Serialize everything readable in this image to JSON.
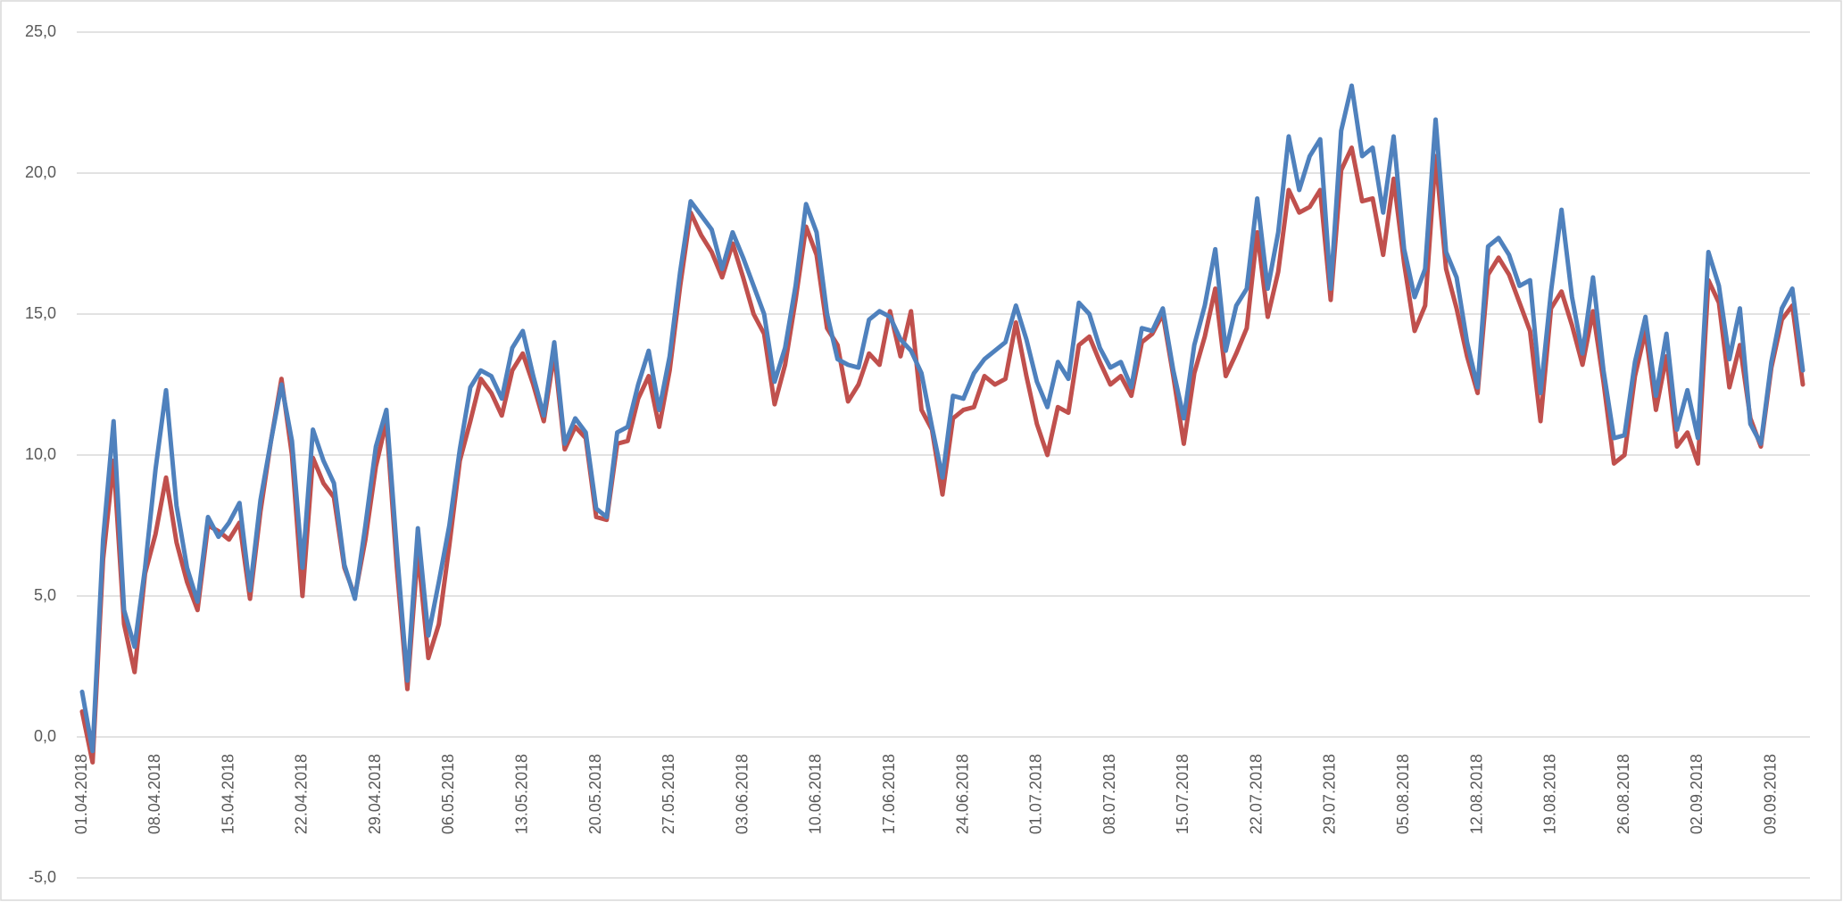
{
  "chart_data": {
    "type": "line",
    "categories": [
      "01.04.2018",
      null,
      null,
      null,
      null,
      null,
      null,
      "08.04.2018",
      null,
      null,
      null,
      null,
      null,
      null,
      "15.04.2018",
      null,
      null,
      null,
      null,
      null,
      null,
      "22.04.2018",
      null,
      null,
      null,
      null,
      null,
      null,
      "29.04.2018",
      null,
      null,
      null,
      null,
      null,
      null,
      "06.05.2018",
      null,
      null,
      null,
      null,
      null,
      null,
      "13.05.2018",
      null,
      null,
      null,
      null,
      null,
      null,
      "20.05.2018",
      null,
      null,
      null,
      null,
      null,
      null,
      "27.05.2018",
      null,
      null,
      null,
      null,
      null,
      null,
      "03.06.2018",
      null,
      null,
      null,
      null,
      null,
      null,
      "10.06.2018",
      null,
      null,
      null,
      null,
      null,
      null,
      "17.06.2018",
      null,
      null,
      null,
      null,
      null,
      null,
      "24.06.2018",
      null,
      null,
      null,
      null,
      null,
      null,
      "01.07.2018",
      null,
      null,
      null,
      null,
      null,
      null,
      "08.07.2018",
      null,
      null,
      null,
      null,
      null,
      null,
      "15.07.2018",
      null,
      null,
      null,
      null,
      null,
      null,
      "22.07.2018",
      null,
      null,
      null,
      null,
      null,
      null,
      "29.07.2018",
      null,
      null,
      null,
      null,
      null,
      null,
      "05.08.2018",
      null,
      null,
      null,
      null,
      null,
      null,
      "12.08.2018",
      null,
      null,
      null,
      null,
      null,
      null,
      "19.08.2018",
      null,
      null,
      null,
      null,
      null,
      null,
      "26.08.2018",
      null,
      null,
      null,
      null,
      null,
      null,
      "02.09.2018",
      null,
      null,
      null,
      null,
      null,
      null,
      "09.09.2018",
      null,
      null,
      null
    ],
    "series": [
      {
        "color": "#c0504d",
        "values": [
          0.9,
          -0.9,
          6.3,
          9.8,
          4.0,
          2.3,
          5.8,
          7.2,
          9.2,
          6.9,
          5.5,
          4.5,
          7.5,
          7.3,
          7.0,
          7.6,
          4.9,
          8.0,
          10.5,
          12.7,
          10.0,
          5.0,
          9.9,
          9.0,
          8.5,
          6.0,
          5.0,
          7.0,
          9.6,
          11.2,
          6.0,
          1.7,
          6.6,
          2.8,
          4.0,
          6.8,
          9.8,
          11.2,
          12.7,
          12.2,
          11.4,
          13.0,
          13.6,
          12.5,
          11.2,
          13.6,
          10.2,
          11.0,
          10.6,
          7.8,
          7.7,
          10.4,
          10.5,
          12.0,
          12.8,
          11.0,
          13.0,
          16.0,
          18.6,
          17.8,
          17.2,
          16.3,
          17.5,
          16.3,
          15.0,
          14.3,
          11.8,
          13.2,
          15.5,
          18.1,
          17.1,
          14.5,
          13.9,
          11.9,
          12.5,
          13.6,
          13.2,
          15.1,
          13.5,
          15.1,
          11.6,
          10.9,
          8.6,
          11.3,
          11.6,
          11.7,
          12.8,
          12.5,
          12.7,
          14.7,
          12.8,
          11.1,
          10.0,
          11.7,
          11.5,
          13.9,
          14.2,
          13.3,
          12.5,
          12.8,
          12.1,
          14.0,
          14.3,
          15.0,
          12.8,
          10.4,
          12.9,
          14.2,
          15.9,
          12.8,
          13.6,
          14.5,
          17.9,
          14.9,
          16.5,
          19.4,
          18.6,
          18.8,
          19.4,
          15.5,
          20.1,
          20.9,
          19.0,
          19.1,
          17.1,
          19.8,
          16.8,
          14.4,
          15.3,
          20.6,
          16.6,
          15.2,
          13.5,
          12.2,
          16.4,
          17.0,
          16.4,
          15.4,
          14.4,
          11.2,
          15.2,
          15.8,
          14.6,
          13.2,
          15.1,
          12.6,
          9.7,
          10.0,
          12.8,
          14.4,
          11.6,
          13.5,
          10.3,
          10.8,
          9.7,
          16.2,
          15.4,
          12.4,
          13.9,
          11.3,
          10.3,
          13.1,
          14.8,
          15.3,
          12.5
        ]
      },
      {
        "color": "#4f81bd",
        "values": [
          1.6,
          -0.5,
          7.0,
          11.2,
          4.5,
          3.2,
          6.0,
          9.5,
          12.3,
          8.2,
          6.0,
          4.8,
          7.8,
          7.1,
          7.6,
          8.3,
          5.2,
          8.4,
          10.5,
          12.5,
          10.5,
          6.0,
          10.9,
          9.8,
          9.0,
          6.1,
          4.9,
          7.5,
          10.3,
          11.6,
          6.6,
          2.0,
          7.4,
          3.6,
          5.5,
          7.5,
          10.2,
          12.4,
          13.0,
          12.8,
          12.0,
          13.8,
          14.4,
          12.8,
          11.4,
          14.0,
          10.4,
          11.3,
          10.8,
          8.1,
          7.8,
          10.8,
          11.0,
          12.5,
          13.7,
          11.6,
          13.5,
          16.5,
          19.0,
          18.5,
          18.0,
          16.6,
          17.9,
          17.0,
          16.0,
          15.0,
          12.6,
          13.8,
          16.0,
          18.9,
          17.9,
          15.0,
          13.4,
          13.2,
          13.1,
          14.8,
          15.1,
          14.9,
          14.1,
          13.7,
          12.9,
          11.0,
          9.2,
          12.1,
          12.0,
          12.9,
          13.4,
          13.7,
          14.0,
          15.3,
          14.1,
          12.6,
          11.7,
          13.3,
          12.7,
          15.4,
          15.0,
          13.8,
          13.1,
          13.3,
          12.4,
          14.5,
          14.4,
          15.2,
          13.0,
          11.3,
          13.9,
          15.3,
          17.3,
          13.7,
          15.3,
          15.9,
          19.1,
          15.9,
          17.9,
          21.3,
          19.4,
          20.6,
          21.2,
          15.9,
          21.5,
          23.1,
          20.6,
          20.9,
          18.6,
          21.3,
          17.3,
          15.6,
          16.6,
          21.9,
          17.2,
          16.3,
          14.0,
          12.4,
          17.4,
          17.7,
          17.1,
          16.0,
          16.2,
          12.2,
          15.8,
          18.7,
          15.6,
          13.6,
          16.3,
          13.0,
          10.6,
          10.7,
          13.3,
          14.9,
          12.1,
          14.3,
          10.9,
          12.3,
          10.6,
          17.2,
          16.0,
          13.4,
          15.2,
          11.1,
          10.4,
          13.3,
          15.2,
          15.9,
          13.0
        ]
      }
    ],
    "ylim": [
      -5,
      25
    ],
    "yticks": [
      {
        "value": -5,
        "label": "-5,0"
      },
      {
        "value": 0,
        "label": "0,0"
      },
      {
        "value": 5,
        "label": "5,0"
      },
      {
        "value": 10,
        "label": "10,0"
      },
      {
        "value": 15,
        "label": "15,0"
      },
      {
        "value": 20,
        "label": "20,0"
      },
      {
        "value": 25,
        "label": "25,0"
      }
    ],
    "grid": true
  }
}
